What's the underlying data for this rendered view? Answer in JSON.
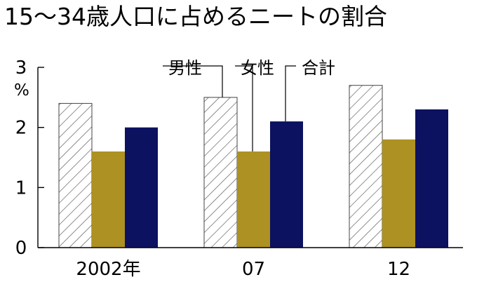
{
  "chart_data": {
    "type": "bar",
    "title": "15〜34歳人口に占めるニートの割合",
    "unit": "%",
    "categories": [
      "2002年",
      "07",
      "12"
    ],
    "series": [
      {
        "name": "男性",
        "values": [
          2.4,
          2.5,
          2.7
        ],
        "color": "#ffffff",
        "pattern": "diagonal-hatch"
      },
      {
        "name": "女性",
        "values": [
          1.6,
          1.6,
          1.8
        ],
        "color": "#ad9122"
      },
      {
        "name": "合計",
        "values": [
          2.0,
          2.1,
          2.3
        ],
        "color": "#0c1260"
      }
    ],
    "ylim": [
      0,
      3
    ],
    "yticks": [
      0,
      1,
      2,
      3
    ],
    "grid": false,
    "legend": "top-center, leader lines to 2007 bars"
  }
}
